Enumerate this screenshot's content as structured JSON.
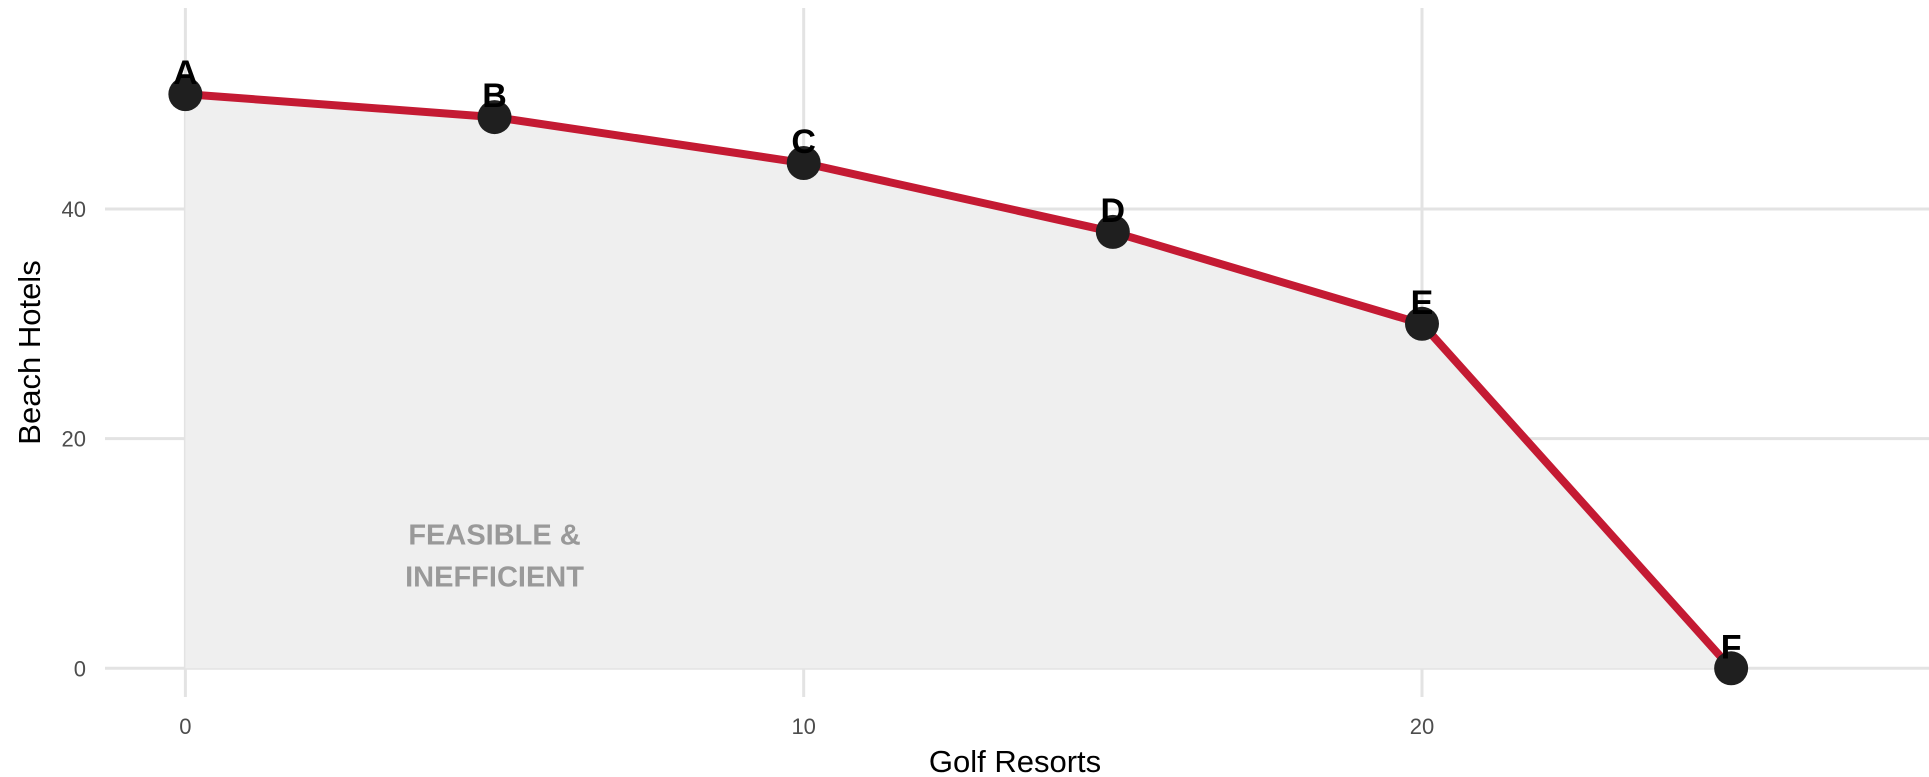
{
  "colors": {
    "frontier_line": "#c41a33",
    "point_fill": "#1f1f1f",
    "area_fill": "#efefef",
    "grid": "#e3e3e3",
    "region_text": "#999999"
  },
  "chart_data": {
    "type": "area",
    "xlabel": "Golf Resorts",
    "ylabel": "Beach Hotels",
    "xlim": [
      -1.3,
      28.2
    ],
    "ylim": [
      -2.5,
      57.5
    ],
    "x_ticks": [
      0,
      10,
      20
    ],
    "x_tick_labels": [
      "0",
      "10",
      "20"
    ],
    "y_ticks": [
      0,
      20,
      40
    ],
    "y_tick_labels": [
      "0",
      "20",
      "40"
    ],
    "grid": true,
    "points": [
      {
        "label": "A",
        "x": 0,
        "y": 50
      },
      {
        "label": "B",
        "x": 5,
        "y": 48
      },
      {
        "label": "C",
        "x": 10,
        "y": 44
      },
      {
        "label": "D",
        "x": 15,
        "y": 38
      },
      {
        "label": "E",
        "x": 20,
        "y": 30
      },
      {
        "label": "F",
        "x": 25,
        "y": 0
      }
    ],
    "annotation": {
      "lines": [
        "FEASIBLE &",
        "INEFFICIENT"
      ],
      "x": 5,
      "y": 10
    }
  }
}
